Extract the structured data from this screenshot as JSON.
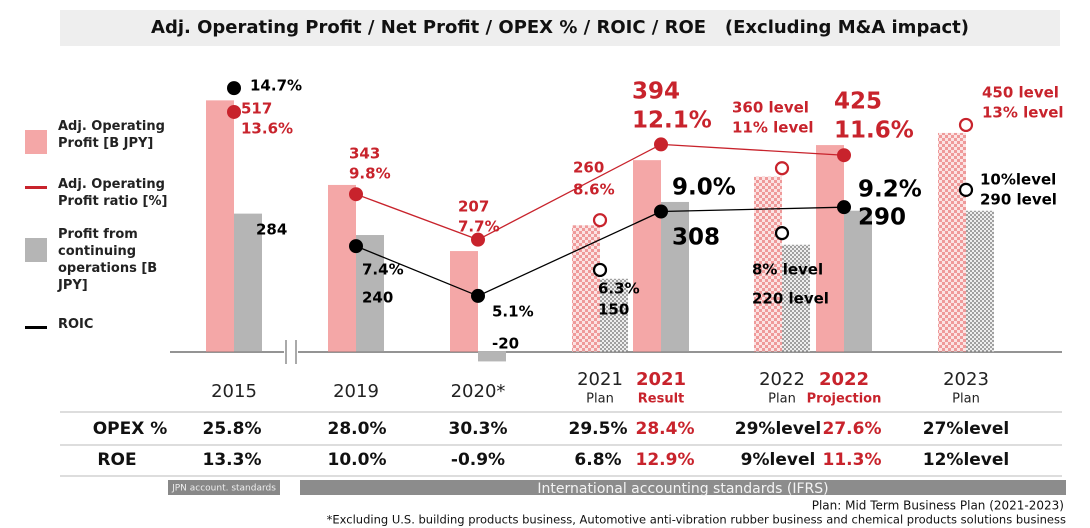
{
  "chart_data": {
    "type": "bar",
    "title": "Adj. Operating Profit / Net Profit / OPEX % / ROIC / ROE   (Excluding M&A impact)",
    "categories": [
      "2015",
      "2019",
      "2020*",
      "2021",
      "2021",
      "2022",
      "2022",
      "2023"
    ],
    "subcategories": [
      null,
      null,
      null,
      "Plan",
      "Result",
      "Plan",
      "Projection",
      "Plan"
    ],
    "highlight": [
      false,
      false,
      false,
      false,
      true,
      false,
      true,
      false
    ],
    "plan_style": [
      false,
      false,
      false,
      true,
      false,
      true,
      false,
      true
    ],
    "ylim": [
      -50,
      600
    ],
    "y2lim": [
      1.4,
      16
    ],
    "series": [
      {
        "name": "Adj. Operating Profit [B JPY]",
        "color": "#f4a7a7",
        "values": [
          517,
          343,
          207,
          260,
          394,
          360,
          425,
          450
        ],
        "value_labels": [
          "517",
          "343",
          "207",
          "260",
          "394",
          "360 level",
          "425",
          "450 level"
        ]
      },
      {
        "name": "Profit from continuing operations [B JPY]",
        "color": "#b5b5b5",
        "values": [
          284,
          240,
          -20,
          150,
          308,
          220,
          290,
          290
        ],
        "value_labels": [
          "284",
          "240",
          "-20",
          "150",
          "308",
          "220 level",
          "290",
          "290 level"
        ]
      },
      {
        "name": "Adj. Operating Profit ratio [%]",
        "color": "#c8232c",
        "axis": "y2",
        "values": [
          13.6,
          9.8,
          7.7,
          8.6,
          12.1,
          11,
          11.6,
          13
        ],
        "value_labels": [
          "13.6%",
          "9.8%",
          "7.7%",
          "8.6%",
          "12.1%",
          "11% level",
          "11.6%",
          "13% level"
        ]
      },
      {
        "name": "ROIC",
        "color": "#000000",
        "axis": "y2",
        "values": [
          14.7,
          7.4,
          5.1,
          6.3,
          9.0,
          8,
          9.2,
          10
        ],
        "value_labels": [
          "14.7%",
          "7.4%",
          "5.1%",
          "6.3%",
          "9.0%",
          "8% level",
          "9.2%",
          "10%level"
        ]
      }
    ]
  },
  "table": {
    "rows": [
      {
        "label": "OPEX %",
        "values": [
          "25.8%",
          "28.0%",
          "30.3%",
          "29.5%",
          "28.4%",
          "29%level",
          "27.6%",
          "27%level"
        ]
      },
      {
        "label": "ROE",
        "values": [
          "13.3%",
          "10.0%",
          "-0.9%",
          "6.8%",
          "12.9%",
          "9%level",
          "11.3%",
          "12%level"
        ]
      }
    ]
  },
  "footer": {
    "jpn": "JPN account. standards",
    "ifrs": "International accounting standards (IFRS)",
    "note1": "Plan: Mid Term Business Plan (2021-2023)",
    "note2": "*Excluding U.S. building products business, Automotive anti-vibration rubber business and chemical products solutions business"
  }
}
